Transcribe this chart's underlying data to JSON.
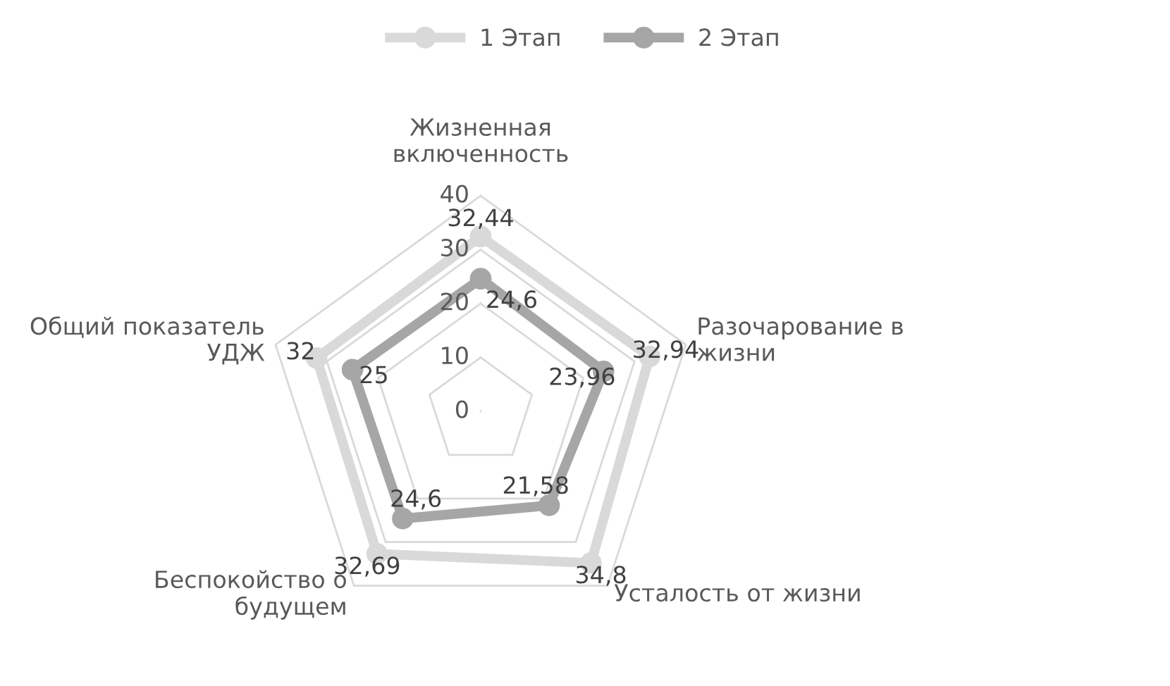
{
  "chart_data": {
    "type": "radar",
    "categories": [
      "Жизненная\nвключенность",
      "Разочарование в\nжизни",
      "Усталость от жизни",
      "Беспокойство о\nбудущем",
      "Общий показатель\nУДЖ"
    ],
    "series": [
      {
        "name": "1 Этап",
        "color": "#d9d9d9",
        "values": [
          32.44,
          32.94,
          34.8,
          32.69,
          32
        ],
        "value_labels": [
          "32,44",
          "32,94",
          "34,8",
          "32,69",
          "32"
        ]
      },
      {
        "name": "2 Этап",
        "color": "#a6a6a6",
        "values": [
          24.6,
          23.96,
          21.58,
          24.6,
          25
        ],
        "value_labels": [
          "24,6",
          "23,96",
          "21,58",
          "24,6",
          "25"
        ]
      }
    ],
    "ylim": [
      0,
      40
    ],
    "yticks": [
      0,
      10,
      20,
      30,
      40
    ],
    "grid": true,
    "legend": "top",
    "marker": "circle",
    "line_style": "solid"
  }
}
